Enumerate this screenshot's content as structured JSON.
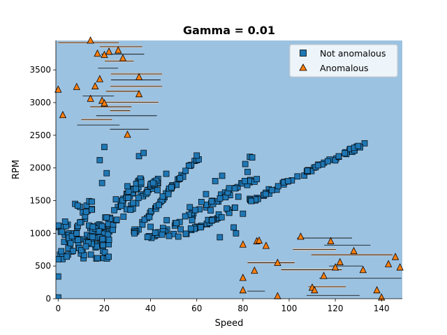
{
  "chart_data": {
    "type": "scatter",
    "title": "Gamma = 0.01",
    "xlabel": "Speed",
    "ylabel": "RPM",
    "xlim": [
      -1,
      149
    ],
    "ylim": [
      0,
      3950
    ],
    "xticks": [
      0,
      20,
      40,
      60,
      80,
      100,
      120,
      140
    ],
    "yticks": [
      0,
      500,
      1000,
      1500,
      2000,
      2500,
      3000,
      3500
    ],
    "legend_position": "top-right",
    "background_color": "#9cc2e1",
    "contour_color": "#000000",
    "anomaly_region_color": "#f2c7a3",
    "series": [
      {
        "name": "Not anomalous",
        "marker": "square",
        "color": "#1f77b4",
        "bands": [
          {
            "x_from": 0,
            "x_to": 22,
            "y_from": 600,
            "y_to": 1150,
            "count": 70
          },
          {
            "x_from": 5,
            "x_to": 15,
            "y_from": 850,
            "y_to": 1500,
            "count": 18
          },
          {
            "x_from": 13,
            "x_to": 37,
            "y_from": 900,
            "y_to": 1850,
            "count": 50,
            "spread": 60
          },
          {
            "x_from": 18,
            "x_to": 47,
            "y_from": 900,
            "y_to": 1950,
            "count": 45,
            "spread": 55
          },
          {
            "x_from": 30,
            "x_to": 61,
            "y_from": 900,
            "y_to": 2180,
            "count": 45,
            "spread": 45
          },
          {
            "x_from": 38,
            "x_to": 84,
            "y_from": 900,
            "y_to": 1820,
            "count": 50,
            "spread": 45
          },
          {
            "x_from": 55,
            "x_to": 133,
            "y_from": 1000,
            "y_to": 2380,
            "count": 90,
            "spread": 35
          }
        ],
        "points": [
          [
            0,
            1120
          ],
          [
            0,
            340
          ],
          [
            0,
            10
          ],
          [
            0,
            20
          ],
          [
            3,
            1180
          ],
          [
            10,
            740
          ],
          [
            17,
            620
          ],
          [
            18,
            2120
          ],
          [
            20,
            2320
          ],
          [
            21,
            1920
          ],
          [
            19,
            1770
          ],
          [
            35,
            2180
          ],
          [
            37,
            2230
          ],
          [
            43,
            1660
          ],
          [
            53,
            1060
          ],
          [
            45,
            980
          ],
          [
            50,
            990
          ],
          [
            48,
            960
          ],
          [
            52,
            950
          ],
          [
            58,
            1200
          ],
          [
            60,
            2190
          ],
          [
            70,
            940
          ],
          [
            71,
            1880
          ],
          [
            76,
            1090
          ],
          [
            77,
            1000
          ],
          [
            80,
            1300
          ],
          [
            81,
            2060
          ],
          [
            82,
            1940
          ],
          [
            83,
            2170
          ],
          [
            84,
            2160
          ],
          [
            85,
            1790
          ],
          [
            86,
            1830
          ],
          [
            30,
            1720
          ],
          [
            25,
            1520
          ],
          [
            22,
            900
          ],
          [
            12,
            800
          ],
          [
            8,
            1000
          ],
          [
            15,
            1100
          ],
          [
            33,
            1000
          ],
          [
            40,
            1100
          ],
          [
            42,
            1010
          ],
          [
            47,
            1200
          ],
          [
            55,
            1260
          ],
          [
            62,
            1480
          ],
          [
            66,
            1350
          ],
          [
            64,
            1600
          ],
          [
            74,
            1690
          ],
          [
            78,
            1560
          ],
          [
            68,
            1800
          ],
          [
            73,
            1380
          ],
          [
            57,
            1400
          ]
        ]
      },
      {
        "name": "Anomalous",
        "marker": "triangle",
        "color": "#ff7f0e",
        "points": [
          [
            14,
            3950
          ],
          [
            17,
            3750
          ],
          [
            20,
            3730
          ],
          [
            22,
            3780
          ],
          [
            26,
            3800
          ],
          [
            28,
            3680
          ],
          [
            0,
            3200
          ],
          [
            2,
            2810
          ],
          [
            8,
            3240
          ],
          [
            16,
            3250
          ],
          [
            18,
            3360
          ],
          [
            14,
            3060
          ],
          [
            19,
            3030
          ],
          [
            20,
            2990
          ],
          [
            30,
            2510
          ],
          [
            35,
            3390
          ],
          [
            35,
            3130
          ],
          [
            80,
            830
          ],
          [
            86,
            880
          ],
          [
            87,
            890
          ],
          [
            90,
            810
          ],
          [
            80,
            320
          ],
          [
            80,
            130
          ],
          [
            85,
            430
          ],
          [
            95,
            40
          ],
          [
            95,
            550
          ],
          [
            105,
            950
          ],
          [
            110,
            170
          ],
          [
            111,
            130
          ],
          [
            118,
            880
          ],
          [
            120,
            480
          ],
          [
            122,
            560
          ],
          [
            128,
            730
          ],
          [
            132,
            440
          ],
          [
            138,
            130
          ],
          [
            140,
            20
          ],
          [
            143,
            530
          ],
          [
            146,
            640
          ],
          [
            148,
            480
          ],
          [
            115,
            350
          ]
        ]
      }
    ],
    "anomaly_regions": [
      {
        "x": [
          0,
          45
        ],
        "y": [
          2480,
          3950
        ]
      },
      {
        "x": [
          79,
          149
        ],
        "y": [
          0,
          960
        ]
      }
    ]
  }
}
